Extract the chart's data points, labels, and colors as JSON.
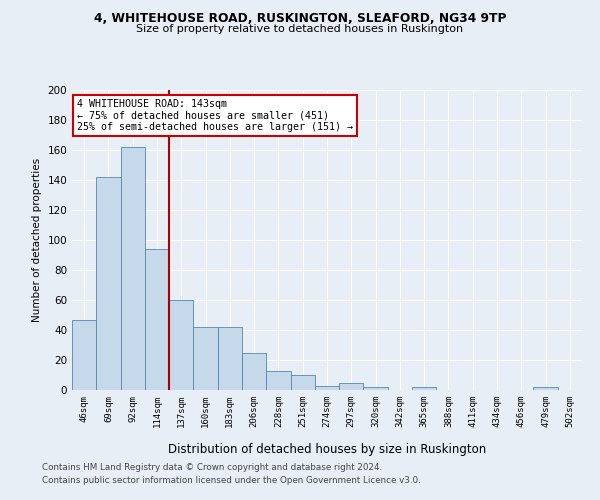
{
  "title1": "4, WHITEHOUSE ROAD, RUSKINGTON, SLEAFORD, NG34 9TP",
  "title2": "Size of property relative to detached houses in Ruskington",
  "xlabel": "Distribution of detached houses by size in Ruskington",
  "ylabel": "Number of detached properties",
  "categories": [
    "46sqm",
    "69sqm",
    "92sqm",
    "114sqm",
    "137sqm",
    "160sqm",
    "183sqm",
    "206sqm",
    "228sqm",
    "251sqm",
    "274sqm",
    "297sqm",
    "320sqm",
    "342sqm",
    "365sqm",
    "388sqm",
    "411sqm",
    "434sqm",
    "456sqm",
    "479sqm",
    "502sqm"
  ],
  "values": [
    47,
    142,
    162,
    94,
    60,
    42,
    42,
    25,
    13,
    10,
    3,
    5,
    2,
    0,
    2,
    0,
    0,
    0,
    0,
    2,
    0
  ],
  "bar_color": "#c5d9ea",
  "bar_edge_color": "#5588aa",
  "vline_x": 3.5,
  "vline_color": "#aa0000",
  "annotation_text": "4 WHITEHOUSE ROAD: 143sqm\n← 75% of detached houses are smaller (451)\n25% of semi-detached houses are larger (151) →",
  "annotation_box_color": "#ffffff",
  "annotation_box_edge": "#cc0000",
  "bg_color": "#e8eef5",
  "grid_color": "#ffffff",
  "footer1": "Contains HM Land Registry data © Crown copyright and database right 2024.",
  "footer2": "Contains public sector information licensed under the Open Government Licence v3.0.",
  "ylim": [
    0,
    200
  ],
  "yticks": [
    0,
    20,
    40,
    60,
    80,
    100,
    120,
    140,
    160,
    180,
    200
  ]
}
